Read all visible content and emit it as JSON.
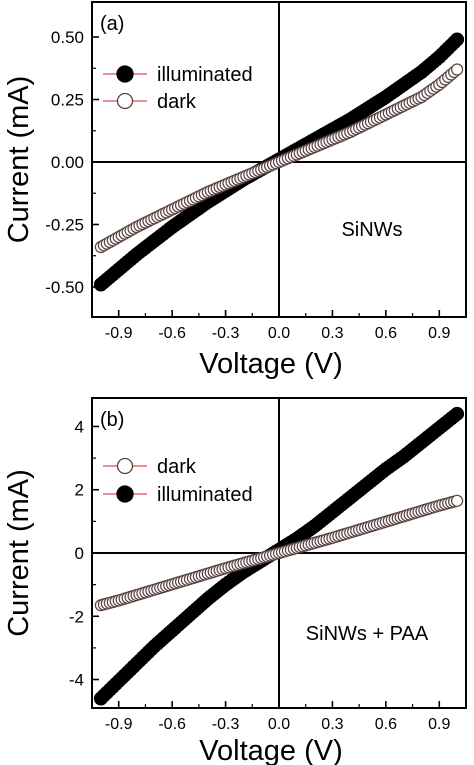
{
  "chart_data": [
    {
      "type": "scatter",
      "panel_label": "(a)",
      "xlabel": "Voltage (V)",
      "ylabel": "Current (mA)",
      "xlim": [
        -1.05,
        1.05
      ],
      "ylim": [
        -0.62,
        0.64
      ],
      "xticks": [
        -0.9,
        -0.6,
        -0.3,
        0.0,
        0.3,
        0.6,
        0.9
      ],
      "xtick_labels": [
        "-0.9",
        "-0.6",
        "-0.3",
        "0.0",
        "0.3",
        "0.6",
        "0.9"
      ],
      "yticks": [
        -0.5,
        -0.25,
        0.0,
        0.25,
        0.5
      ],
      "ytick_labels": [
        "-0.50",
        "-0.25",
        "0.00",
        "0.25",
        "0.50"
      ],
      "annotation": "SiNWs",
      "legend": [
        {
          "name": "illuminated",
          "marker": "filled-circle"
        },
        {
          "name": "dark",
          "marker": "open-circle"
        }
      ],
      "legend_position": "top-left",
      "grid": false,
      "series": [
        {
          "name": "illuminated",
          "marker": "filled",
          "x": [
            -1.0,
            -0.9,
            -0.8,
            -0.7,
            -0.6,
            -0.5,
            -0.4,
            -0.3,
            -0.2,
            -0.1,
            0.0,
            0.1,
            0.2,
            0.3,
            0.4,
            0.5,
            0.6,
            0.7,
            0.8,
            0.9,
            1.0
          ],
          "y": [
            -0.49,
            -0.43,
            -0.37,
            -0.315,
            -0.26,
            -0.21,
            -0.16,
            -0.115,
            -0.07,
            -0.03,
            0.01,
            0.05,
            0.09,
            0.13,
            0.17,
            0.215,
            0.26,
            0.31,
            0.36,
            0.42,
            0.49
          ]
        },
        {
          "name": "dark",
          "marker": "open",
          "x": [
            -1.0,
            -0.9,
            -0.8,
            -0.7,
            -0.6,
            -0.5,
            -0.4,
            -0.3,
            -0.2,
            -0.1,
            0.0,
            0.1,
            0.2,
            0.3,
            0.4,
            0.5,
            0.6,
            0.7,
            0.8,
            0.9,
            1.0
          ],
          "y": [
            -0.34,
            -0.3,
            -0.26,
            -0.225,
            -0.19,
            -0.155,
            -0.12,
            -0.09,
            -0.06,
            -0.03,
            0.0,
            0.03,
            0.06,
            0.09,
            0.12,
            0.155,
            0.19,
            0.225,
            0.26,
            0.31,
            0.37
          ]
        }
      ]
    },
    {
      "type": "scatter",
      "panel_label": "(b)",
      "xlabel": "Voltage (V)",
      "ylabel": "Current (mA)",
      "xlim": [
        -1.05,
        1.05
      ],
      "ylim": [
        -4.9,
        4.9
      ],
      "xticks": [
        -0.9,
        -0.6,
        -0.3,
        0.0,
        0.3,
        0.6,
        0.9
      ],
      "xtick_labels": [
        "-0.9",
        "-0.6",
        "-0.3",
        "0.0",
        "0.3",
        "0.6",
        "0.9"
      ],
      "yticks": [
        -4,
        -2,
        0,
        2,
        4
      ],
      "ytick_labels": [
        "-4",
        "-2",
        "0",
        "2",
        "4"
      ],
      "annotation": "SiNWs + PAA",
      "legend": [
        {
          "name": "dark",
          "marker": "open-circle"
        },
        {
          "name": "illuminated",
          "marker": "filled-circle"
        }
      ],
      "legend_position": "top-left",
      "grid": false,
      "series": [
        {
          "name": "illuminated",
          "marker": "filled",
          "x": [
            -1.0,
            -0.9,
            -0.8,
            -0.7,
            -0.6,
            -0.5,
            -0.4,
            -0.3,
            -0.2,
            -0.1,
            0.0,
            0.1,
            0.2,
            0.3,
            0.4,
            0.5,
            0.6,
            0.7,
            0.8,
            0.9,
            1.0
          ],
          "y": [
            -4.6,
            -4.05,
            -3.5,
            -2.95,
            -2.45,
            -1.95,
            -1.45,
            -1.0,
            -0.6,
            -0.25,
            0.1,
            0.45,
            0.85,
            1.3,
            1.75,
            2.2,
            2.65,
            3.05,
            3.5,
            3.95,
            4.4
          ]
        },
        {
          "name": "dark",
          "marker": "open",
          "x": [
            -1.0,
            -0.9,
            -0.8,
            -0.7,
            -0.6,
            -0.5,
            -0.4,
            -0.3,
            -0.2,
            -0.1,
            0.0,
            0.1,
            0.2,
            0.3,
            0.4,
            0.5,
            0.6,
            0.7,
            0.8,
            0.9,
            1.0
          ],
          "y": [
            -1.65,
            -1.5,
            -1.33,
            -1.16,
            -0.99,
            -0.82,
            -0.65,
            -0.48,
            -0.32,
            -0.16,
            0.0,
            0.16,
            0.32,
            0.48,
            0.65,
            0.82,
            0.99,
            1.16,
            1.33,
            1.5,
            1.65
          ]
        }
      ]
    }
  ]
}
